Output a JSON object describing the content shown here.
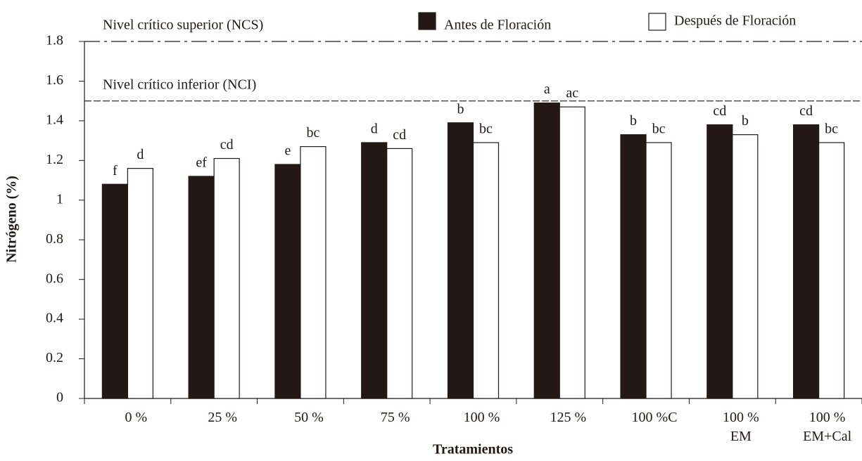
{
  "chart_data": {
    "type": "bar",
    "x_label": "Tratamientos",
    "y_label": "Nitrógeno (%)",
    "categories": [
      [
        "0 %"
      ],
      [
        "25 %"
      ],
      [
        "50 %"
      ],
      [
        "75 %"
      ],
      [
        "100 %"
      ],
      [
        "125 %"
      ],
      [
        "100 %C"
      ],
      [
        "100 %",
        "EM"
      ],
      [
        "100 %",
        "EM+Cal"
      ]
    ],
    "series": [
      {
        "name": "Antes de Floración",
        "color": "#231815",
        "values": [
          1.08,
          1.12,
          1.18,
          1.29,
          1.39,
          1.49,
          1.33,
          1.38,
          1.38
        ],
        "letters": [
          "f",
          "ef",
          "e",
          "d",
          "b",
          "a",
          "b",
          "cd",
          "cd"
        ]
      },
      {
        "name": "Después de Floración",
        "color": "#ffffff",
        "values": [
          1.16,
          1.21,
          1.27,
          1.26,
          1.29,
          1.47,
          1.29,
          1.33,
          1.29
        ],
        "letters": [
          "d",
          "cd",
          "bc",
          "cd",
          "bc",
          "ac",
          "bc",
          "b",
          "bc"
        ]
      }
    ],
    "reference_lines": [
      {
        "value": 1.8,
        "label": "Nivel crítico  superior (NCS)",
        "style": "dashdot"
      },
      {
        "value": 1.5,
        "label": "Nivel crítico  inferior (NCI)",
        "style": "dashed"
      }
    ],
    "ylim": [
      0,
      1.8
    ],
    "yticks": [
      0,
      0.2,
      0.4,
      0.6,
      0.8,
      1,
      1.2,
      1.4,
      1.6,
      1.8
    ],
    "grid": false,
    "legend": "top"
  }
}
